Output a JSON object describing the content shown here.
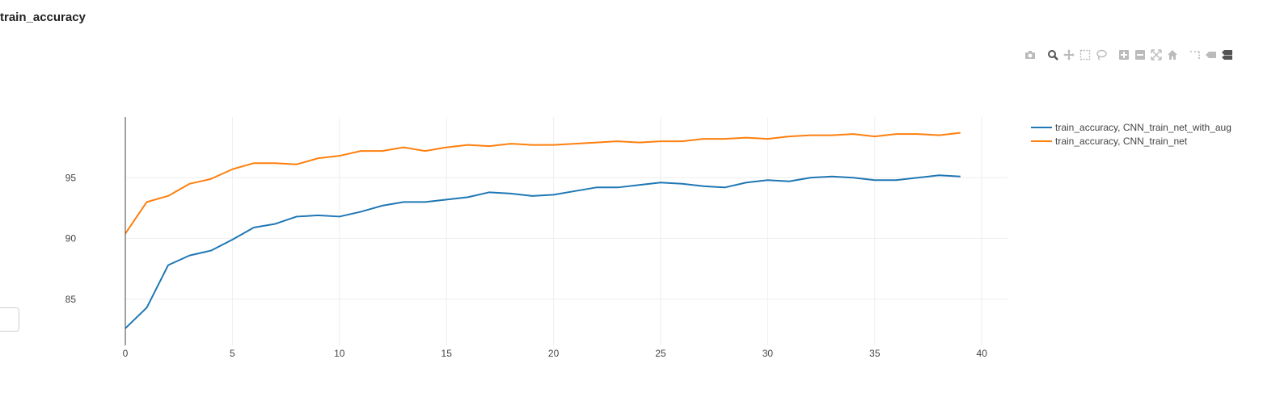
{
  "header": {
    "title": "train_accuracy"
  },
  "modebar": {
    "icons": [
      "camera-icon",
      "zoom-icon",
      "pan-icon",
      "box-select-icon",
      "lasso-icon",
      "zoom-in-icon",
      "zoom-out-icon",
      "autoscale-icon",
      "reset-axes-icon",
      "spike-lines-icon",
      "hover-closest-icon",
      "hover-compare-icon"
    ]
  },
  "chart_data": {
    "type": "line",
    "title": "train_accuracy",
    "xlabel": "",
    "ylabel": "",
    "xlim": [
      0,
      41.2
    ],
    "ylim": [
      81.2,
      100
    ],
    "x_ticks": [
      0,
      5,
      10,
      15,
      20,
      25,
      30,
      35,
      40
    ],
    "y_ticks": [
      85,
      90,
      95
    ],
    "grid": true,
    "legend_position": "top-right",
    "x": [
      0,
      1,
      2,
      3,
      4,
      5,
      6,
      7,
      8,
      9,
      10,
      11,
      12,
      13,
      14,
      15,
      16,
      17,
      18,
      19,
      20,
      21,
      22,
      23,
      24,
      25,
      26,
      27,
      28,
      29,
      30,
      31,
      32,
      33,
      34,
      35,
      36,
      37,
      38,
      39
    ],
    "series": [
      {
        "name": "train_accuracy, CNN_train_net_with_aug",
        "color": "#1f77b4",
        "values": [
          82.6,
          84.3,
          87.8,
          88.6,
          89.0,
          89.9,
          90.9,
          91.2,
          91.8,
          91.9,
          91.8,
          92.2,
          92.7,
          93.0,
          93.0,
          93.2,
          93.4,
          93.8,
          93.7,
          93.5,
          93.6,
          93.9,
          94.2,
          94.2,
          94.4,
          94.6,
          94.5,
          94.3,
          94.2,
          94.6,
          94.8,
          94.7,
          95.0,
          95.1,
          95.0,
          94.8,
          94.8,
          95.0,
          95.2,
          95.1
        ]
      },
      {
        "name": "train_accuracy, CNN_train_net",
        "color": "#ff7f0e",
        "values": [
          90.4,
          93.0,
          93.5,
          94.5,
          94.9,
          95.7,
          96.2,
          96.2,
          96.1,
          96.6,
          96.8,
          97.2,
          97.2,
          97.5,
          97.2,
          97.5,
          97.7,
          97.6,
          97.8,
          97.7,
          97.7,
          97.8,
          97.9,
          98.0,
          97.9,
          98.0,
          98.0,
          98.2,
          98.2,
          98.3,
          98.2,
          98.4,
          98.5,
          98.5,
          98.6,
          98.4,
          98.6,
          98.6,
          98.5,
          98.7
        ]
      }
    ]
  }
}
